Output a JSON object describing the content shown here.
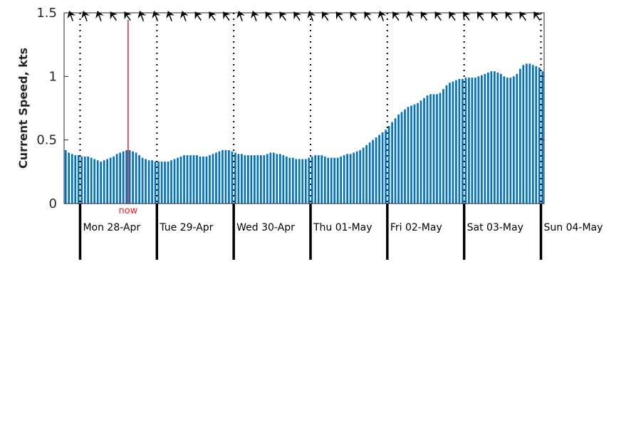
{
  "colors": {
    "bar": "#0072bd",
    "now": "#e8212a",
    "axis": "#262626",
    "arrow": "#000000"
  },
  "chart_data": {
    "type": "bar",
    "ylabel": "Current Speed, kts",
    "ylim": [
      0,
      1.5
    ],
    "yticks": [
      "0",
      "0.5",
      "1",
      "1.5"
    ],
    "ytick_values": [
      0,
      0.5,
      1,
      1.5
    ],
    "interval_hours": 1,
    "start": "2025-04-27T19:00",
    "day_labels": [
      "Mon 28-Apr",
      "Tue 29-Apr",
      "Wed 30-Apr",
      "Thu 01-May",
      "Fri 02-May",
      "Sat 03-May",
      "Sun 04-May"
    ],
    "now_label": "now",
    "now_time": "2025-04-28T15:00",
    "values": [
      0.42,
      0.4,
      0.39,
      0.38,
      0.38,
      0.37,
      0.37,
      0.37,
      0.36,
      0.35,
      0.34,
      0.33,
      0.34,
      0.35,
      0.36,
      0.37,
      0.39,
      0.4,
      0.41,
      0.42,
      0.42,
      0.41,
      0.4,
      0.38,
      0.36,
      0.35,
      0.34,
      0.34,
      0.33,
      0.33,
      0.33,
      0.33,
      0.33,
      0.34,
      0.35,
      0.36,
      0.37,
      0.38,
      0.38,
      0.38,
      0.38,
      0.38,
      0.37,
      0.37,
      0.37,
      0.38,
      0.39,
      0.4,
      0.41,
      0.42,
      0.42,
      0.42,
      0.41,
      0.4,
      0.39,
      0.39,
      0.38,
      0.38,
      0.38,
      0.38,
      0.38,
      0.38,
      0.38,
      0.39,
      0.4,
      0.4,
      0.39,
      0.39,
      0.38,
      0.37,
      0.36,
      0.36,
      0.35,
      0.35,
      0.35,
      0.35,
      0.36,
      0.37,
      0.38,
      0.38,
      0.38,
      0.37,
      0.36,
      0.36,
      0.36,
      0.36,
      0.37,
      0.38,
      0.39,
      0.39,
      0.4,
      0.41,
      0.42,
      0.44,
      0.46,
      0.48,
      0.5,
      0.52,
      0.54,
      0.56,
      0.58,
      0.61,
      0.64,
      0.67,
      0.7,
      0.72,
      0.74,
      0.76,
      0.77,
      0.78,
      0.79,
      0.81,
      0.83,
      0.85,
      0.86,
      0.86,
      0.86,
      0.87,
      0.9,
      0.93,
      0.95,
      0.96,
      0.97,
      0.98,
      0.98,
      0.99,
      0.99,
      0.99,
      0.99,
      1.0,
      1.01,
      1.02,
      1.03,
      1.04,
      1.04,
      1.03,
      1.02,
      1.0,
      0.99,
      0.99,
      1.0,
      1.02,
      1.06,
      1.09,
      1.1,
      1.1,
      1.09,
      1.08,
      1.07,
      1.04
    ],
    "direction_arrows_deg": [
      250,
      250,
      250,
      235,
      235,
      250,
      250,
      250,
      250,
      235,
      235,
      235,
      250,
      250,
      235,
      235,
      235,
      250,
      235,
      235,
      235,
      235,
      250,
      235,
      250,
      235,
      235,
      235,
      235,
      235,
      235,
      235,
      235,
      235
    ]
  }
}
